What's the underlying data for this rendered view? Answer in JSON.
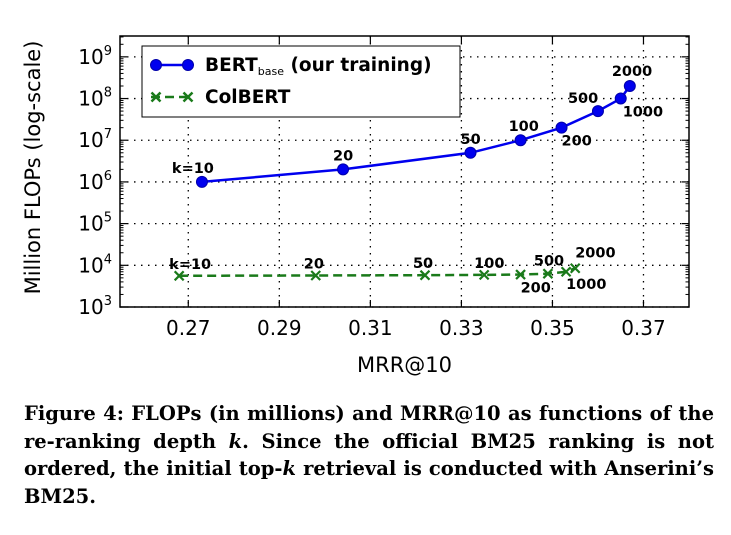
{
  "chart_data": {
    "type": "line",
    "xlabel": "MRR@10",
    "ylabel": "Million FLOPs (log-scale)",
    "xlim": [
      0.255,
      0.38
    ],
    "ylim_log10": [
      3,
      9.5
    ],
    "y_scale": "log",
    "grid": true,
    "legend_placement": "top-left",
    "x_ticks": [
      "0.27",
      "0.29",
      "0.31",
      "0.33",
      "0.35",
      "0.37"
    ],
    "x_tick_values": [
      0.27,
      0.29,
      0.31,
      0.33,
      0.35,
      0.37
    ],
    "y_tick_exponents": [
      "3",
      "4",
      "5",
      "6",
      "7",
      "8",
      "9"
    ],
    "y_tick_base": "10",
    "series": [
      {
        "name_main": "BERT",
        "name_sub": "base",
        "name_rest": " (our training)",
        "color": "#0000ee",
        "marker": "circle",
        "line_style": "solid",
        "points": [
          {
            "label": "k=10",
            "x": 0.273,
            "y": 1000000.0
          },
          {
            "label": "20",
            "x": 0.304,
            "y": 2000000.0
          },
          {
            "label": "50",
            "x": 0.332,
            "y": 5000000.0
          },
          {
            "label": "100",
            "x": 0.343,
            "y": 10000000.0
          },
          {
            "label": "200",
            "x": 0.352,
            "y": 20000000.0
          },
          {
            "label": "500",
            "x": 0.36,
            "y": 50000000.0
          },
          {
            "label": "1000",
            "x": 0.365,
            "y": 100000000.0
          },
          {
            "label": "2000",
            "x": 0.367,
            "y": 200000000.0
          }
        ]
      },
      {
        "name": "ColBERT",
        "color": "#1a7a1a",
        "marker": "x",
        "line_style": "dashed",
        "points": [
          {
            "label": "k=10",
            "x": 0.268,
            "y": 5600.0
          },
          {
            "label": "20",
            "x": 0.298,
            "y": 5700.0
          },
          {
            "label": "50",
            "x": 0.322,
            "y": 5800.0
          },
          {
            "label": "100",
            "x": 0.335,
            "y": 5900.0
          },
          {
            "label": "200",
            "x": 0.343,
            "y": 6000.0
          },
          {
            "label": "500",
            "x": 0.349,
            "y": 6300.0
          },
          {
            "label": "1000",
            "x": 0.353,
            "y": 7000.0
          },
          {
            "label": "2000",
            "x": 0.355,
            "y": 8500.0
          }
        ]
      }
    ]
  },
  "caption": {
    "prefix": "Figure 4: FLOPs (in millions) and MRR@10 as functions of the re-ranking depth ",
    "k1": "k",
    "middle": ". Since the official BM25 ranking is not ordered, the initial top-",
    "k2": "k",
    "suffix": " retrieval is conducted with Anserini’s BM25."
  }
}
